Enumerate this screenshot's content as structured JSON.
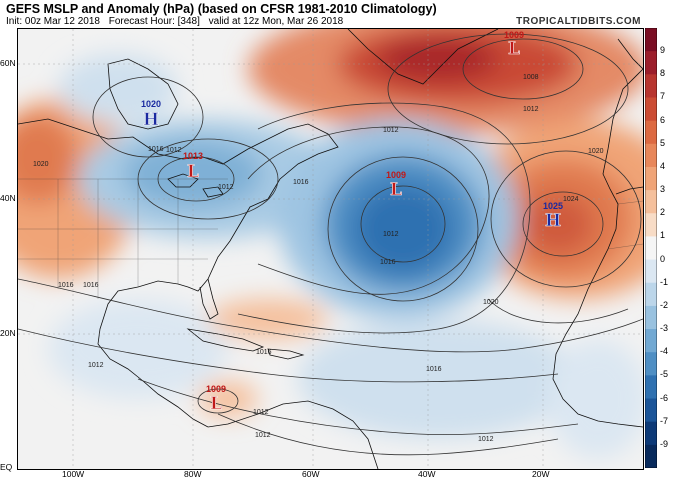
{
  "header": {
    "title": "GEFS MSLP and Anomaly (hPa) (based on CFSR 1981-2010 Climatology)",
    "init": "Init: 00z Mar 12 2018",
    "forecast_hour": "Forecast Hour: [348]",
    "valid": "valid at 12z Mon, Mar 26 2018",
    "brand": "TROPICALTIDBITS.COM"
  },
  "axes": {
    "lat_labels": [
      "60N",
      "40N",
      "20N",
      "EQ"
    ],
    "lon_labels": [
      "100W",
      "80W",
      "60W",
      "40W",
      "20W"
    ]
  },
  "colorbar": {
    "labels": [
      "9",
      "8",
      "7",
      "6",
      "5",
      "4",
      "3",
      "2",
      "1",
      "0",
      "-1",
      "-2",
      "-3",
      "-4",
      "-5",
      "-6",
      "-7",
      "-9"
    ],
    "colors": [
      "#7a0d23",
      "#9c1e2b",
      "#b8352f",
      "#cc4c34",
      "#dd6a42",
      "#e8875a",
      "#f0a477",
      "#f5c09c",
      "#f8dcc6",
      "#f5f5f5",
      "#dbe7f2",
      "#bcd6ea",
      "#99c2e0",
      "#72a9d3",
      "#4f8fc4",
      "#2f71b1",
      "#1b5599",
      "#0d3a78",
      "#082a5c"
    ]
  },
  "pressure_centers": [
    {
      "type": "H",
      "value": "1020",
      "color": "#1a2aa0"
    },
    {
      "type": "L",
      "value": "1013",
      "color": "#c01818"
    },
    {
      "type": "L",
      "value": "1009",
      "color": "#c01818"
    },
    {
      "type": "H",
      "value": "1025",
      "color": "#1a2aa0"
    },
    {
      "type": "L",
      "value": "1009",
      "color": "#c01818"
    },
    {
      "type": "L",
      "value": "1009",
      "color": "#c01818"
    }
  ],
  "isobar_labels": [
    "1016",
    "1012",
    "1016",
    "1020",
    "1016",
    "1012",
    "1008",
    "1012",
    "1012",
    "1012",
    "1016",
    "1020",
    "1024",
    "1020",
    "1016",
    "1016",
    "1016",
    "1012",
    "1012",
    "1012",
    "1012"
  ]
}
